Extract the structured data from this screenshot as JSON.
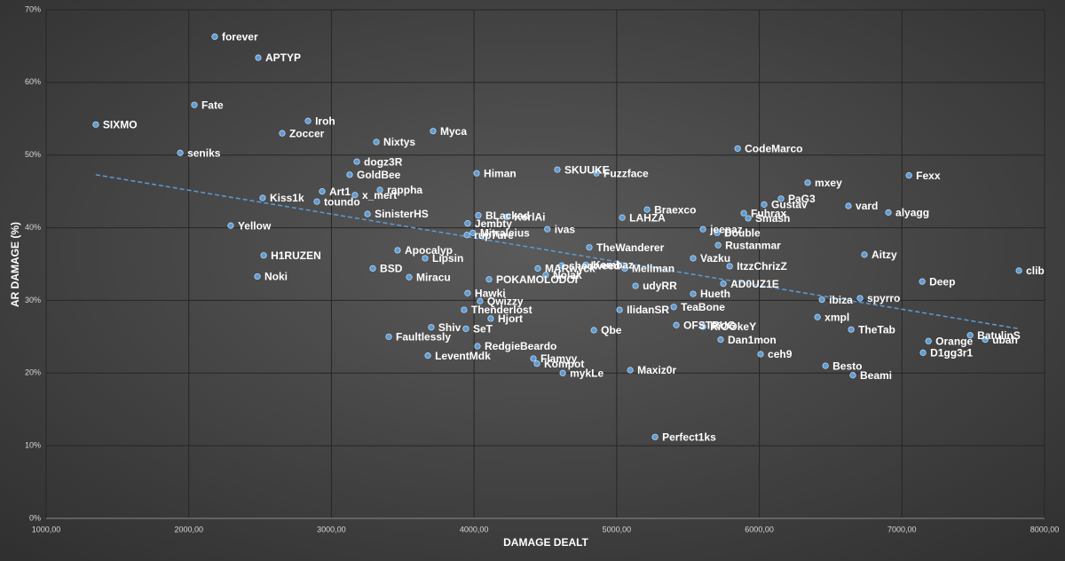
{
  "chart_data": {
    "type": "scatter",
    "x_label": "DAMAGE DEALT",
    "y_label": "AR DAMAGE (%)",
    "xlim": [
      1000,
      8000
    ],
    "ylim": [
      0,
      70
    ],
    "xticks": [
      {
        "value": 1000,
        "label": "1000,00"
      },
      {
        "value": 2000,
        "label": "2000,00"
      },
      {
        "value": 3000,
        "label": "3000,00"
      },
      {
        "value": 4000,
        "label": "4000,00"
      },
      {
        "value": 5000,
        "label": "5000,00"
      },
      {
        "value": 6000,
        "label": "6000,00"
      },
      {
        "value": 7000,
        "label": "7000,00"
      },
      {
        "value": 8000,
        "label": "8000,00"
      }
    ],
    "yticks": [
      {
        "value": 0,
        "label": "0%"
      },
      {
        "value": 10,
        "label": "10%"
      },
      {
        "value": 20,
        "label": "20%"
      },
      {
        "value": 30,
        "label": "30%"
      },
      {
        "value": 40,
        "label": "40%"
      },
      {
        "value": 50,
        "label": "50%"
      },
      {
        "value": 60,
        "label": "60%"
      },
      {
        "value": 70,
        "label": "70%"
      }
    ],
    "grid": true,
    "color": "#5b9bd5",
    "trendline": {
      "color": "#5b9bd5",
      "x": [
        1348,
        7820
      ],
      "y": [
        47.3,
        26.1
      ]
    },
    "points": [
      {
        "label": "forever",
        "x": 2182,
        "y": 66.3
      },
      {
        "label": "APTYP",
        "x": 2487,
        "y": 63.4
      },
      {
        "label": "Fate",
        "x": 2039,
        "y": 56.9
      },
      {
        "label": "SIXMO",
        "x": 1348,
        "y": 54.2
      },
      {
        "label": "Iroh",
        "x": 2836,
        "y": 54.7
      },
      {
        "label": "Zoccer",
        "x": 2655,
        "y": 53.0
      },
      {
        "label": "Myca",
        "x": 3713,
        "y": 53.3
      },
      {
        "label": "Nixtys",
        "x": 3315,
        "y": 51.8
      },
      {
        "label": "seniks",
        "x": 1940,
        "y": 50.3
      },
      {
        "label": "CodeMarco",
        "x": 5848,
        "y": 50.9
      },
      {
        "label": "dogz3R",
        "x": 3178,
        "y": 49.1
      },
      {
        "label": "GoldBee",
        "x": 3128,
        "y": 47.3
      },
      {
        "label": "Himan",
        "x": 4018,
        "y": 47.5
      },
      {
        "label": "SKUUKE",
        "x": 4584,
        "y": 48.0
      },
      {
        "label": "Fuzzface",
        "x": 4858,
        "y": 47.5
      },
      {
        "label": "Fexx",
        "x": 7049,
        "y": 47.2
      },
      {
        "label": "mxey",
        "x": 6339,
        "y": 46.2
      },
      {
        "label": "PaG3",
        "x": 6152,
        "y": 44.0
      },
      {
        "label": "Gustav",
        "x": 6034,
        "y": 43.2
      },
      {
        "label": "vard",
        "x": 6625,
        "y": 43.0
      },
      {
        "label": "alyagg",
        "x": 6905,
        "y": 42.1
      },
      {
        "label": "rappha",
        "x": 3340,
        "y": 45.2
      },
      {
        "label": "Art1",
        "x": 2935,
        "y": 45.0
      },
      {
        "label": "x_mert",
        "x": 3165,
        "y": 44.5
      },
      {
        "label": "toundo",
        "x": 2898,
        "y": 43.6
      },
      {
        "label": "Kiss1k",
        "x": 2518,
        "y": 44.1
      },
      {
        "label": "SinisterHS",
        "x": 3253,
        "y": 41.9
      },
      {
        "label": "Fuhrax",
        "x": 5891,
        "y": 42.0
      },
      {
        "label": "Smash",
        "x": 5922,
        "y": 41.3
      },
      {
        "label": "Braexco",
        "x": 5213,
        "y": 42.5
      },
      {
        "label": "LAHZA",
        "x": 5039,
        "y": 41.4
      },
      {
        "label": "BLackad",
        "x": 4030,
        "y": 41.7
      },
      {
        "label": "KerlAi",
        "x": 4230,
        "y": 41.5
      },
      {
        "label": "Jembty",
        "x": 3955,
        "y": 40.6
      },
      {
        "label": "Mitraleius",
        "x": 3992,
        "y": 39.3
      },
      {
        "label": "ivas",
        "x": 4514,
        "y": 39.8
      },
      {
        "label": "Yellow",
        "x": 2294,
        "y": 40.3
      },
      {
        "label": "rup7ure",
        "x": 3950,
        "y": 39.0
      },
      {
        "label": "jeepaz",
        "x": 5605,
        "y": 39.8
      },
      {
        "label": "Double",
        "x": 5704,
        "y": 39.3
      },
      {
        "label": "Rustanmar",
        "x": 5711,
        "y": 37.6
      },
      {
        "label": "TheWanderer",
        "x": 4808,
        "y": 37.3
      },
      {
        "label": "Apocalyp",
        "x": 3464,
        "y": 36.9
      },
      {
        "label": "H1RUZEN",
        "x": 2525,
        "y": 36.2
      },
      {
        "label": "Lipsin",
        "x": 3657,
        "y": 35.8
      },
      {
        "label": "Aitzy",
        "x": 6737,
        "y": 36.3
      },
      {
        "label": "Vazku",
        "x": 5536,
        "y": 35.8
      },
      {
        "label": "ItzzChrizZ",
        "x": 5792,
        "y": 34.7
      },
      {
        "label": "BSD",
        "x": 3290,
        "y": 34.4
      },
      {
        "label": "clib",
        "x": 7820,
        "y": 34.1
      },
      {
        "label": "shedweed",
        "x": 4615,
        "y": 34.8
      },
      {
        "label": "Kembaz",
        "x": 4783,
        "y": 34.9
      },
      {
        "label": "Mellman",
        "x": 5057,
        "y": 34.4
      },
      {
        "label": "MARwyck",
        "x": 4447,
        "y": 34.4
      },
      {
        "label": "POKAMOLODOI",
        "x": 4105,
        "y": 32.9
      },
      {
        "label": "Nolak",
        "x": 4503,
        "y": 33.5
      },
      {
        "label": "Noki",
        "x": 2481,
        "y": 33.3
      },
      {
        "label": "Miracu",
        "x": 3545,
        "y": 33.2
      },
      {
        "label": "Deep",
        "x": 7142,
        "y": 32.6
      },
      {
        "label": "udyRR",
        "x": 5132,
        "y": 32.0
      },
      {
        "label": "AD0UZ1E",
        "x": 5748,
        "y": 32.3
      },
      {
        "label": "Hueth",
        "x": 5536,
        "y": 30.9
      },
      {
        "label": "Hawki",
        "x": 3955,
        "y": 31.0
      },
      {
        "label": "ibiza",
        "x": 6439,
        "y": 30.1
      },
      {
        "label": "spyrro",
        "x": 6706,
        "y": 30.3
      },
      {
        "label": "Qwizzy",
        "x": 4042,
        "y": 29.9
      },
      {
        "label": "TeaBone",
        "x": 5400,
        "y": 29.1
      },
      {
        "label": "Thenderlost",
        "x": 3930,
        "y": 28.7
      },
      {
        "label": "IlidanSR",
        "x": 5020,
        "y": 28.7
      },
      {
        "label": "Hjort",
        "x": 4117,
        "y": 27.5
      },
      {
        "label": "xmpl",
        "x": 6408,
        "y": 27.7
      },
      {
        "label": "Shiv",
        "x": 3700,
        "y": 26.3
      },
      {
        "label": "SeT",
        "x": 3943,
        "y": 26.1
      },
      {
        "label": "OFSTRUG",
        "x": 5418,
        "y": 26.6
      },
      {
        "label": "RiOOkeY",
        "x": 5605,
        "y": 26.4
      },
      {
        "label": "Qbe",
        "x": 4840,
        "y": 25.9
      },
      {
        "label": "TheTab",
        "x": 6644,
        "y": 26.0
      },
      {
        "label": "Faultlessly",
        "x": 3402,
        "y": 25.0
      },
      {
        "label": "BatulinS",
        "x": 7478,
        "y": 25.2
      },
      {
        "label": "ubah",
        "x": 7584,
        "y": 24.6
      },
      {
        "label": "Orange",
        "x": 7186,
        "y": 24.4
      },
      {
        "label": "Dan1mon",
        "x": 5729,
        "y": 24.6
      },
      {
        "label": "RedgieBeardo",
        "x": 4024,
        "y": 23.7
      },
      {
        "label": "D1gg3r1",
        "x": 7148,
        "y": 22.8
      },
      {
        "label": "ceh9",
        "x": 6009,
        "y": 22.6
      },
      {
        "label": "LeventMdk",
        "x": 3676,
        "y": 22.4
      },
      {
        "label": "Flamyy",
        "x": 4416,
        "y": 22.0
      },
      {
        "label": "Kompot",
        "x": 4441,
        "y": 21.3
      },
      {
        "label": "Besto",
        "x": 6464,
        "y": 21.0
      },
      {
        "label": "mykLe",
        "x": 4622,
        "y": 20.0
      },
      {
        "label": "Maxiz0r",
        "x": 5095,
        "y": 20.4
      },
      {
        "label": "Beami",
        "x": 6656,
        "y": 19.7
      },
      {
        "label": "Perfect1ks",
        "x": 5269,
        "y": 11.2
      }
    ]
  }
}
